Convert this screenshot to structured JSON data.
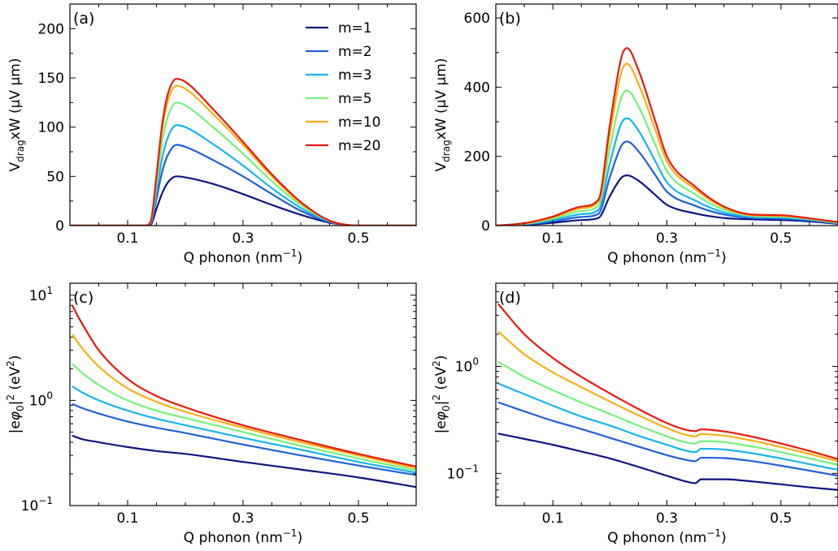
{
  "legend": {
    "entries": [
      "m=1",
      "m=2",
      "m=3",
      "m=5",
      "m=10",
      "m=20"
    ],
    "colors": [
      "#10137f",
      "#1f5fd8",
      "#16b4ee",
      "#73f27a",
      "#f6b012",
      "#e8190c"
    ]
  },
  "chart_data": [
    {
      "type": "line",
      "panel": "(a)",
      "xlabel": "Q phonon (nm",
      "xlabel_sup": "−1",
      "xlabel_end": ")",
      "ylabel_main": "V",
      "ylabel_sub": "drag",
      "ylabel_rest": "xW (μV μm)",
      "xlim": [
        0.0,
        0.6
      ],
      "ylim": [
        0,
        225
      ],
      "yscale": "linear",
      "xticks": [
        0.1,
        0.3,
        0.5
      ],
      "xtick_labels": [
        "0.1",
        "0.3",
        "0.5"
      ],
      "yticks": [
        0,
        50,
        100,
        150,
        200
      ],
      "ytick_labels": [
        "0",
        "50",
        "100",
        "150",
        "200"
      ],
      "grid": false,
      "legend_position": "top-right",
      "x": [
        0.0,
        0.05,
        0.1,
        0.13,
        0.14,
        0.15,
        0.16,
        0.17,
        0.185,
        0.2,
        0.25,
        0.3,
        0.35,
        0.4,
        0.45,
        0.5,
        0.55,
        0.6
      ],
      "series": [
        {
          "name": "m=1",
          "values": [
            0,
            0,
            0,
            0,
            1,
            17,
            33,
            44,
            50,
            49,
            42,
            32,
            21,
            11,
            3,
            0,
            0,
            0
          ]
        },
        {
          "name": "m=2",
          "values": [
            0,
            0,
            0,
            0,
            2,
            27,
            55,
            72,
            82,
            80,
            66,
            50,
            32,
            15,
            4,
            0,
            0,
            0
          ]
        },
        {
          "name": "m=3",
          "values": [
            0,
            0,
            0,
            0,
            3,
            34,
            69,
            90,
            102,
            100,
            82,
            61,
            38,
            18,
            4,
            0,
            0,
            0
          ]
        },
        {
          "name": "m=5",
          "values": [
            0,
            0,
            0,
            0,
            3,
            42,
            85,
            111,
            125,
            122,
            99,
            73,
            45,
            21,
            5,
            0,
            0,
            0
          ]
        },
        {
          "name": "m=10",
          "values": [
            0,
            0,
            0,
            0,
            4,
            48,
            98,
            127,
            142,
            139,
            112,
            82,
            50,
            23,
            5,
            0,
            0,
            0
          ]
        },
        {
          "name": "m=20",
          "values": [
            0,
            0,
            0,
            0,
            4,
            51,
            103,
            134,
            149,
            146,
            117,
            85,
            52,
            24,
            5,
            0,
            0,
            0
          ]
        }
      ]
    },
    {
      "type": "line",
      "panel": "(b)",
      "xlabel": "Q phonon (nm",
      "xlabel_sup": "−1",
      "xlabel_end": ")",
      "ylabel_main": "V",
      "ylabel_sub": "drag",
      "ylabel_rest": "xW (μV μm)",
      "xlim": [
        0.0,
        0.6
      ],
      "ylim": [
        0,
        640
      ],
      "yscale": "linear",
      "xticks": [
        0.1,
        0.3,
        0.5
      ],
      "xtick_labels": [
        "0.1",
        "0.3",
        "0.5"
      ],
      "yticks": [
        0,
        200,
        400,
        600
      ],
      "ytick_labels": [
        "0",
        "200",
        "400",
        "600"
      ],
      "grid": false,
      "x": [
        0.0,
        0.05,
        0.1,
        0.15,
        0.18,
        0.2,
        0.22,
        0.23,
        0.25,
        0.28,
        0.3,
        0.35,
        0.4,
        0.45,
        0.5,
        0.55,
        0.6
      ],
      "series": [
        {
          "name": "m=1",
          "values": [
            0,
            2,
            8,
            16,
            22,
            85,
            138,
            145,
            130,
            88,
            60,
            35,
            22,
            18,
            16,
            12,
            5
          ]
        },
        {
          "name": "m=2",
          "values": [
            0,
            3,
            12,
            25,
            34,
            140,
            230,
            243,
            215,
            145,
            98,
            57,
            32,
            22,
            20,
            15,
            6
          ]
        },
        {
          "name": "m=3",
          "values": [
            0,
            4,
            16,
            33,
            45,
            180,
            295,
            310,
            275,
            185,
            125,
            72,
            38,
            25,
            23,
            17,
            7
          ]
        },
        {
          "name": "m=5",
          "values": [
            0,
            5,
            20,
            42,
            58,
            225,
            370,
            390,
            345,
            232,
            157,
            90,
            46,
            28,
            26,
            19,
            8
          ]
        },
        {
          "name": "m=10",
          "values": [
            0,
            6,
            24,
            50,
            69,
            265,
            442,
            468,
            410,
            275,
            185,
            105,
            52,
            30,
            28,
            20,
            9
          ]
        },
        {
          "name": "m=20",
          "values": [
            0,
            7,
            26,
            55,
            75,
            290,
            485,
            513,
            450,
            300,
            200,
            112,
            55,
            32,
            30,
            21,
            10
          ]
        }
      ]
    },
    {
      "type": "line",
      "panel": "(c)",
      "xlabel": "Q phonon (nm",
      "xlabel_sup": "−1",
      "xlabel_end": ")",
      "ylabel_pre": "|e",
      "ylabel_phi": "φ",
      "ylabel_sub": "0",
      "ylabel_mid": "|",
      "ylabel_sup": "2",
      "ylabel_end": " (eV",
      "ylabel_sup2": "2",
      "ylabel_close": ")",
      "xlim": [
        0.0,
        0.6
      ],
      "ylim": [
        0.1,
        13
      ],
      "yscale": "log",
      "xticks": [
        0.1,
        0.3,
        0.5
      ],
      "xtick_labels": [
        "0.1",
        "0.3",
        "0.5"
      ],
      "yticks": [
        0.1,
        1,
        10
      ],
      "ytick_base": [
        "10",
        "10",
        "10"
      ],
      "ytick_exp": [
        "−1",
        "0",
        "1"
      ],
      "grid": false,
      "x": [
        0.005,
        0.02,
        0.05,
        0.1,
        0.15,
        0.2,
        0.3,
        0.4,
        0.5,
        0.6
      ],
      "series": [
        {
          "name": "m=1",
          "values": [
            0.46,
            0.43,
            0.4,
            0.36,
            0.33,
            0.31,
            0.26,
            0.22,
            0.185,
            0.15
          ]
        },
        {
          "name": "m=2",
          "values": [
            0.92,
            0.85,
            0.75,
            0.63,
            0.55,
            0.49,
            0.38,
            0.3,
            0.24,
            0.195
          ]
        },
        {
          "name": "m=3",
          "values": [
            1.35,
            1.2,
            1.0,
            0.8,
            0.67,
            0.58,
            0.44,
            0.34,
            0.26,
            0.205
          ]
        },
        {
          "name": "m=5",
          "values": [
            2.2,
            1.85,
            1.4,
            1.0,
            0.8,
            0.68,
            0.5,
            0.37,
            0.28,
            0.215
          ]
        },
        {
          "name": "m=10",
          "values": [
            4.2,
            3.2,
            2.1,
            1.3,
            0.97,
            0.78,
            0.55,
            0.4,
            0.3,
            0.225
          ]
        },
        {
          "name": "m=20",
          "values": [
            7.8,
            5.5,
            3.0,
            1.6,
            1.1,
            0.86,
            0.58,
            0.42,
            0.31,
            0.235
          ]
        }
      ]
    },
    {
      "type": "line",
      "panel": "(d)",
      "xlabel": "Q phonon (nm",
      "xlabel_sup": "−1",
      "xlabel_end": ")",
      "ylabel_pre": "|e",
      "ylabel_phi": "φ",
      "ylabel_sub": "0",
      "ylabel_mid": "|",
      "ylabel_sup": "2",
      "ylabel_end": " (eV",
      "ylabel_sup2": "2",
      "ylabel_close": ")",
      "xlim": [
        0.0,
        0.6
      ],
      "ylim": [
        0.05,
        6
      ],
      "yscale": "log",
      "xticks": [
        0.1,
        0.3,
        0.5
      ],
      "xtick_labels": [
        "0.1",
        "0.3",
        "0.5"
      ],
      "yticks": [
        0.1,
        1
      ],
      "ytick_base": [
        "10",
        "10"
      ],
      "ytick_exp": [
        "−1",
        "0"
      ],
      "grid": false,
      "x": [
        0.005,
        0.05,
        0.1,
        0.15,
        0.2,
        0.25,
        0.3,
        0.33,
        0.35,
        0.36,
        0.4,
        0.45,
        0.5,
        0.55,
        0.6
      ],
      "series": [
        {
          "name": "m=1",
          "values": [
            0.235,
            0.21,
            0.185,
            0.16,
            0.138,
            0.115,
            0.095,
            0.085,
            0.081,
            0.088,
            0.088,
            0.084,
            0.079,
            0.074,
            0.07
          ]
        },
        {
          "name": "m=2",
          "values": [
            0.46,
            0.38,
            0.31,
            0.26,
            0.215,
            0.178,
            0.148,
            0.135,
            0.13,
            0.14,
            0.139,
            0.13,
            0.118,
            0.106,
            0.095
          ]
        },
        {
          "name": "m=3",
          "values": [
            0.69,
            0.55,
            0.43,
            0.34,
            0.28,
            0.225,
            0.185,
            0.165,
            0.158,
            0.17,
            0.167,
            0.154,
            0.138,
            0.122,
            0.108
          ]
        },
        {
          "name": "m=5",
          "values": [
            1.1,
            0.8,
            0.6,
            0.46,
            0.36,
            0.28,
            0.222,
            0.197,
            0.19,
            0.2,
            0.196,
            0.178,
            0.158,
            0.138,
            0.12
          ]
        },
        {
          "name": "m=10",
          "values": [
            2.1,
            1.3,
            0.88,
            0.64,
            0.47,
            0.35,
            0.265,
            0.232,
            0.222,
            0.233,
            0.225,
            0.202,
            0.176,
            0.152,
            0.13
          ]
        },
        {
          "name": "m=20",
          "values": [
            3.8,
            2.0,
            1.2,
            0.8,
            0.56,
            0.4,
            0.295,
            0.258,
            0.248,
            0.258,
            0.247,
            0.22,
            0.19,
            0.162,
            0.136
          ]
        }
      ]
    }
  ]
}
